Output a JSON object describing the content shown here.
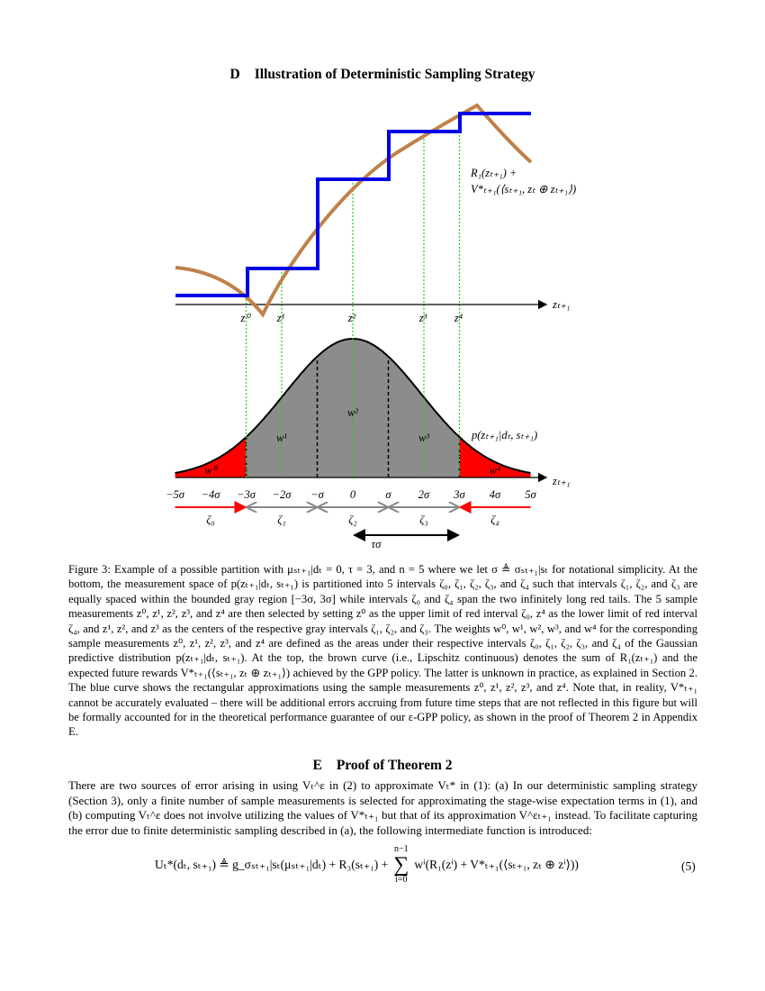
{
  "section_d": {
    "number": "D",
    "title": "Illustration of Deterministic Sampling Strategy"
  },
  "figure": {
    "upper_axis_label": "zₜ₊₁",
    "curve_label": [
      "R₁(zₜ₊₁) +",
      "V*ₜ₊₁(⟨sₜ₊₁, zₜ ⊕ zₜ₊₁⟩)"
    ],
    "sample_labels": [
      "z⁰",
      "z¹",
      "z²",
      "z³",
      "z⁴"
    ],
    "weight_labels": [
      "w⁰",
      "w¹",
      "w²",
      "w³",
      "w⁴"
    ],
    "density_label": "p(zₜ₊₁|dₜ, sₜ₊₁)",
    "lower_axis_label": "zₜ₊₁",
    "tick_labels": [
      "−5σ",
      "−4σ",
      "−3σ",
      "−2σ",
      "−σ",
      "0",
      "σ",
      "2σ",
      "3σ",
      "4σ",
      "5σ"
    ],
    "interval_labels": [
      "ζ₀",
      "ζ₁",
      "ζ₂",
      "ζ₃",
      "ζ₄"
    ],
    "span_label": "τσ"
  },
  "caption": "Figure 3: Example of a possible partition with μₛₜ₊₁|dₜ = 0, τ = 3, and n = 5 where we let σ ≜ σₛₜ₊₁|sₜ for notational simplicity. At the bottom, the measurement space of p(zₜ₊₁|dₜ, sₜ₊₁) is partitioned into 5 intervals ζ₀, ζ₁, ζ₂, ζ₃, and ζ₄ such that intervals ζ₁, ζ₂, and ζ₃ are equally spaced within the bounded gray region [−3σ, 3σ] while intervals ζ₀ and ζ₄ span the two infinitely long red tails. The 5 sample measurements z⁰, z¹, z², z³, and z⁴ are then selected by setting z⁰ as the upper limit of red interval ζ₀, z⁴ as the lower limit of red interval ζ₄, and z¹, z², and z³ as the centers of the respective gray intervals ζ₁, ζ₂, and ζ₃. The weights w⁰, w¹, w², w³, and w⁴ for the corresponding sample measurements z⁰, z¹, z², z³, and z⁴ are defined as the areas under their respective intervals ζ₀, ζ₁, ζ₂, ζ₃, and ζ₄ of the Gaussian predictive distribution p(zₜ₊₁|dₜ, sₜ₊₁). At the top, the brown curve (i.e., Lipschitz continuous) denotes the sum of R₁(zₜ₊₁) and the expected future rewards V*ₜ₊₁(⟨sₜ₊₁, zₜ ⊕ zₜ₊₁⟩) achieved by the GPP policy. The latter is unknown in practice, as explained in Section 2. The blue curve shows the rectangular approximations using the sample measurements z⁰, z¹, z², z³, and z⁴. Note that, in reality, V*ₜ₊₁ cannot be accurately evaluated – there will be additional errors accruing from future time steps that are not reflected in this figure but will be formally accounted for in the theoretical performance guarantee of our ε-GPP policy, as shown in the proof of Theorem 2 in Appendix E.",
  "section_e": {
    "number": "E",
    "title": "Proof of Theorem 2"
  },
  "paragraph": "There are two sources of error arising in using Vₜ^ε in (2) to approximate Vₜ* in (1): (a) In our deterministic sampling strategy (Section 3), only a finite number of sample measurements is selected for approximating the stage-wise expectation terms in (1), and (b) computing Vₜ^ε does not involve utilizing the values of V*ₜ₊₁ but that of its approximation V^εₜ₊₁ instead. To facilitate capturing the error due to finite deterministic sampling described in (a), the following intermediate function is introduced:",
  "equation": {
    "lhs": "Uₜ*(dₜ, sₜ₊₁) ≜ g_σₛₜ₊₁|sₜ(μₛₜ₊₁|dₜ) + R₃(sₜ₊₁) +",
    "sum_symbol": "∑",
    "sum_upper": "n−1",
    "sum_lower": "i=0",
    "rhs": "wⁱ(R₁(zⁱ) + V*ₜ₊₁(⟨sₜ₊₁, zₜ ⊕ zⁱ⟩))",
    "number": "(5)"
  }
}
